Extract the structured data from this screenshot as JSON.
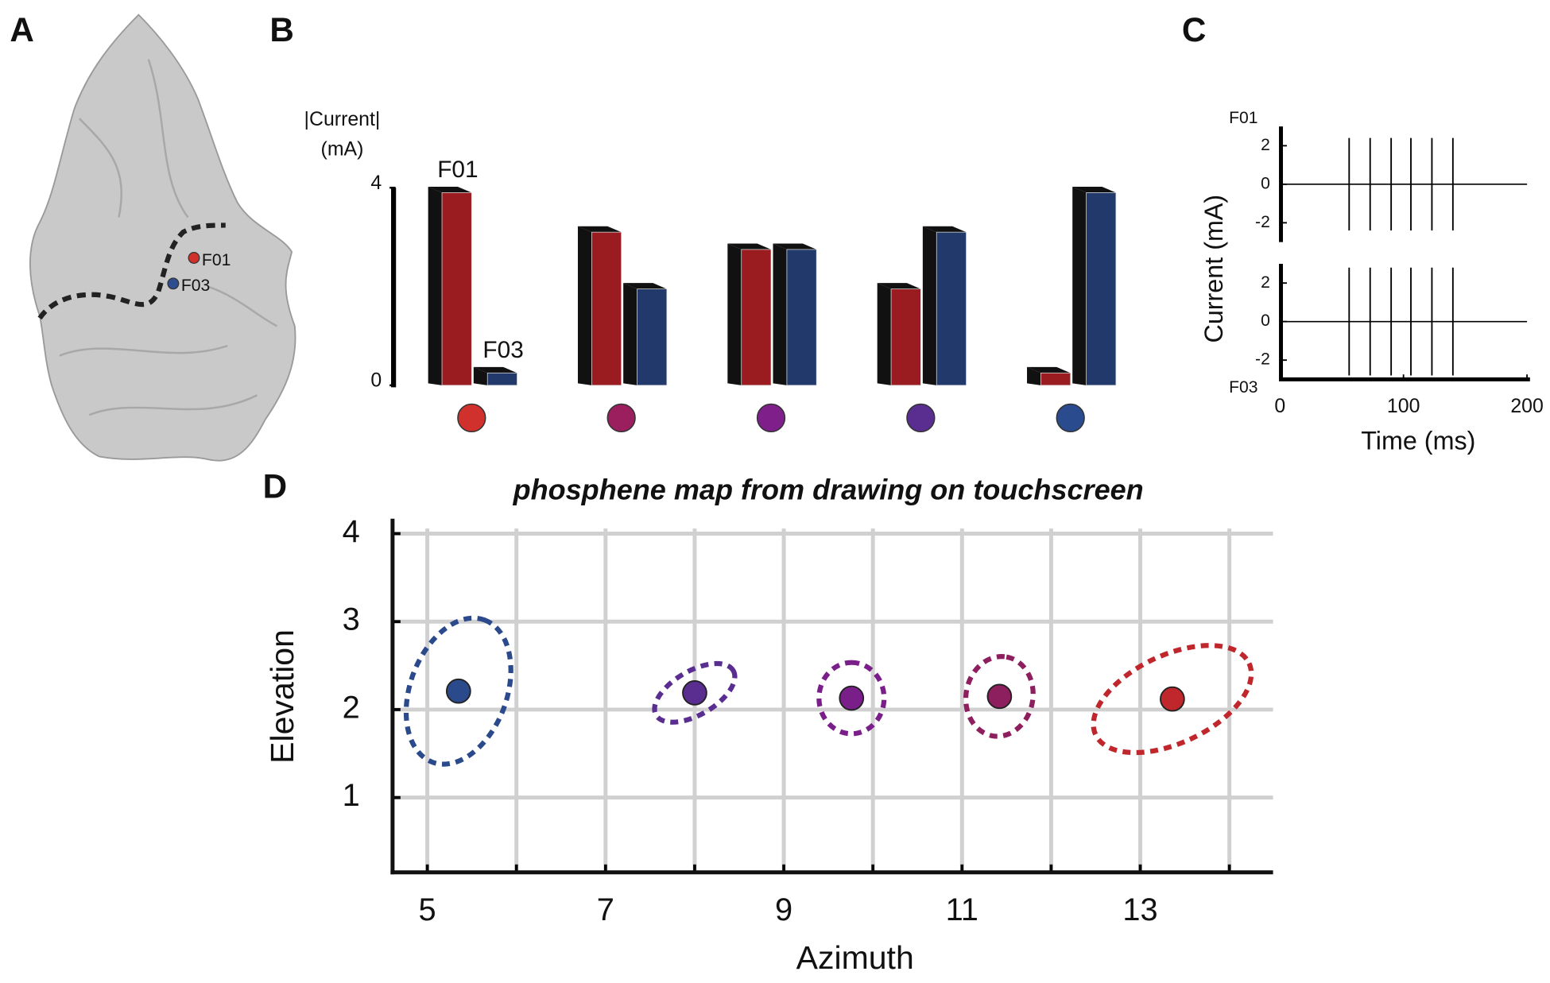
{
  "panel_labels": [
    "A",
    "B",
    "C",
    "D"
  ],
  "brain": {
    "electrodes": [
      {
        "label": "F01",
        "color": "#d0312d"
      },
      {
        "label": "F03",
        "color": "#2e4d8f"
      }
    ]
  },
  "chart_data": [
    {
      "type": "bar",
      "ylabel": [
        "|Current|",
        "(mA)"
      ],
      "categories": [
        null,
        null,
        null,
        null,
        null
      ],
      "category_colors": [
        "#d0312d",
        "#9b1f5e",
        "#7e1f8a",
        "#5a2d91",
        "#2a4b8d"
      ],
      "ylim": [
        0,
        4
      ],
      "yticks": [
        0,
        4
      ],
      "series": [
        {
          "name": "F01",
          "color": "#9b1c20",
          "values": [
            3.9,
            3.1,
            2.75,
            1.95,
            0.25
          ]
        },
        {
          "name": "F03",
          "color": "#213a6b",
          "values": [
            0.25,
            1.95,
            2.75,
            3.1,
            3.9
          ]
        }
      ]
    },
    {
      "type": "pulse",
      "ylabel": "Current (mA)",
      "xlabel": "Time (ms)",
      "xlim": [
        0,
        200
      ],
      "xticks": [
        0,
        100,
        200
      ],
      "ylim": [
        -3,
        3
      ],
      "yticks": [
        2,
        0,
        -2
      ],
      "series": [
        {
          "name": "F01",
          "x": [
            56,
            73,
            90,
            106,
            123,
            140
          ],
          "amplitude": 2.4
        },
        {
          "name": "F03",
          "x": [
            56,
            73,
            90,
            106,
            123,
            140
          ],
          "amplitude": 2.8
        }
      ]
    },
    {
      "type": "scatter",
      "title": "phosphene map from drawing on touchscreen",
      "xlabel": "Azimuth",
      "ylabel": "Elevation",
      "xlim": [
        4.61,
        14.49
      ],
      "xticks": [
        5,
        7,
        9,
        11,
        13
      ],
      "minor_xticks": [
        6,
        8,
        10,
        12,
        14
      ],
      "ylim": [
        0.15,
        4.17
      ],
      "yticks": [
        1,
        2,
        3,
        4
      ],
      "grid": true,
      "points": {
        "x": [
          5.35,
          8.0,
          9.76,
          11.42,
          13.36
        ],
        "y": [
          2.21,
          2.19,
          2.13,
          2.15,
          2.12
        ],
        "colors": [
          "#2b4a8c",
          "#5a2d91",
          "#7a1f8a",
          "#8e1f5e",
          "#c0272d"
        ]
      },
      "ellipses": {
        "semi_major": [
          0.85,
          0.5,
          0.4,
          0.45,
          0.95
        ],
        "semi_minor": [
          0.55,
          0.25,
          0.37,
          0.38,
          0.5
        ],
        "angle": [
          70,
          30,
          90,
          80,
          25
        ]
      }
    }
  ]
}
